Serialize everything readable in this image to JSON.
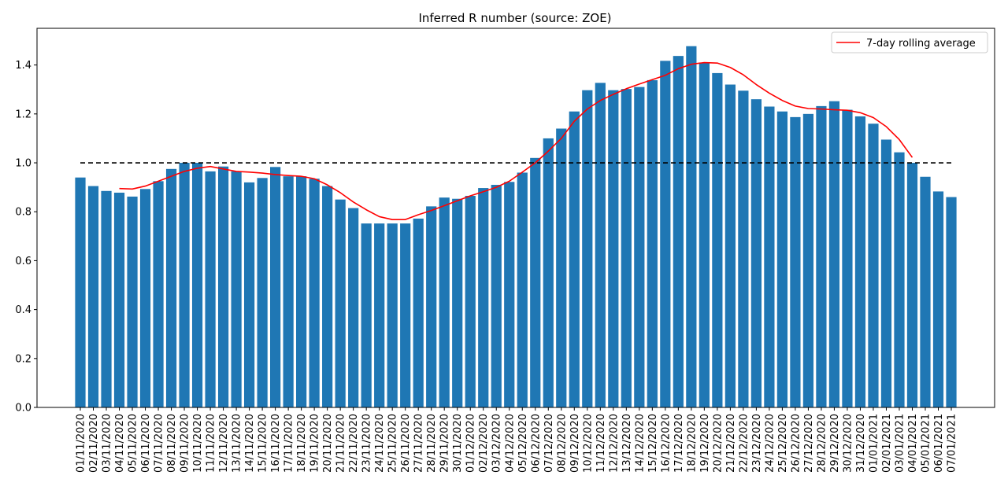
{
  "chart_data": {
    "type": "bar",
    "title": "Inferred R number (source: ZOE)",
    "xlabel": "",
    "ylabel": "",
    "ylim": [
      0,
      1.55
    ],
    "yticks": [
      "0.0",
      "0.2",
      "0.4",
      "0.6",
      "0.8",
      "1.0",
      "1.2",
      "1.4"
    ],
    "bar_color": "#1f77b4",
    "line_color": "#ff0000",
    "reference_color": "#000000",
    "grid": false,
    "legend_position": "top-right",
    "categories": [
      "01/11/2020",
      "02/11/2020",
      "03/11/2020",
      "04/11/2020",
      "05/11/2020",
      "06/11/2020",
      "07/11/2020",
      "08/11/2020",
      "09/11/2020",
      "10/11/2020",
      "11/11/2020",
      "12/11/2020",
      "13/11/2020",
      "14/11/2020",
      "15/11/2020",
      "16/11/2020",
      "17/11/2020",
      "18/11/2020",
      "19/11/2020",
      "20/11/2020",
      "21/11/2020",
      "22/11/2020",
      "23/11/2020",
      "24/11/2020",
      "25/11/2020",
      "26/11/2020",
      "27/11/2020",
      "28/11/2020",
      "29/11/2020",
      "30/11/2020",
      "01/12/2020",
      "02/12/2020",
      "03/12/2020",
      "04/12/2020",
      "05/12/2020",
      "06/12/2020",
      "07/12/2020",
      "08/12/2020",
      "09/12/2020",
      "10/12/2020",
      "11/12/2020",
      "12/12/2020",
      "13/12/2020",
      "14/12/2020",
      "15/12/2020",
      "16/12/2020",
      "17/12/2020",
      "18/12/2020",
      "19/12/2020",
      "20/12/2020",
      "21/12/2020",
      "22/12/2020",
      "23/12/2020",
      "24/12/2020",
      "25/12/2020",
      "26/12/2020",
      "27/12/2020",
      "28/12/2020",
      "29/12/2020",
      "30/12/2020",
      "31/12/2020",
      "01/01/2021",
      "02/01/2021",
      "03/01/2021",
      "04/01/2021",
      "05/01/2021",
      "06/01/2021",
      "07/01/2021"
    ],
    "values": [
      0.94,
      0.905,
      0.885,
      0.878,
      0.862,
      0.893,
      0.925,
      0.975,
      1.0,
      1.0,
      0.965,
      0.985,
      0.965,
      0.92,
      0.938,
      0.983,
      0.945,
      0.945,
      0.935,
      0.905,
      0.85,
      0.815,
      0.752,
      0.752,
      0.752,
      0.752,
      0.772,
      0.822,
      0.858,
      0.853,
      0.865,
      0.897,
      0.91,
      0.922,
      0.96,
      1.02,
      1.1,
      1.14,
      1.21,
      1.297,
      1.327,
      1.297,
      1.302,
      1.31,
      1.338,
      1.417,
      1.437,
      1.477,
      1.41,
      1.367,
      1.32,
      1.295,
      1.26,
      1.23,
      1.21,
      1.187,
      1.2,
      1.232,
      1.252,
      1.217,
      1.19,
      1.16,
      1.095,
      1.043,
      1.0,
      0.943,
      0.883,
      0.86
    ],
    "series": [
      {
        "name": "7-day rolling average",
        "type": "line",
        "values": [
          null,
          null,
          null,
          0.895,
          0.893,
          0.905,
          0.925,
          0.945,
          0.965,
          0.978,
          0.985,
          0.975,
          0.965,
          0.962,
          0.958,
          0.952,
          0.948,
          0.945,
          0.935,
          0.91,
          0.878,
          0.84,
          0.808,
          0.78,
          0.768,
          0.768,
          0.788,
          0.805,
          0.825,
          0.845,
          0.865,
          0.882,
          0.9,
          0.925,
          0.962,
          1.0,
          1.048,
          1.1,
          1.17,
          1.22,
          1.255,
          1.28,
          1.303,
          1.322,
          1.34,
          1.358,
          1.385,
          1.403,
          1.41,
          1.408,
          1.39,
          1.36,
          1.32,
          1.285,
          1.255,
          1.232,
          1.222,
          1.22,
          1.217,
          1.215,
          1.205,
          1.185,
          1.148,
          1.095,
          1.022,
          null,
          null,
          null
        ]
      },
      {
        "name": "",
        "type": "reference",
        "value": 1.0,
        "style": "dashed"
      }
    ]
  }
}
